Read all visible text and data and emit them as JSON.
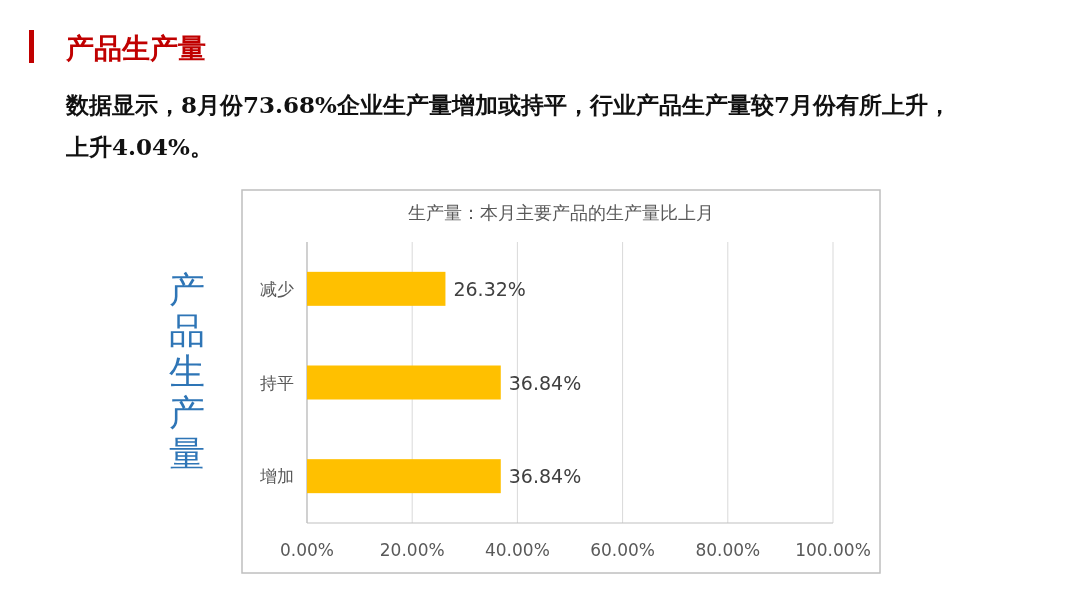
{
  "chart_data": {
    "type": "bar",
    "orientation": "horizontal",
    "title": "产品生产量",
    "subtitle": "数据显示，8月份73.68%企业生产量增加或持平，行业产品生产量较7月份有所上升，上升4.04%。",
    "ylabel": "产品生产量",
    "annotations": [
      "生产量：本月主要产品的生产量比上月"
    ],
    "categories": [
      "减少",
      "持平",
      "增加"
    ],
    "values": [
      26.32,
      36.84,
      36.84
    ],
    "value_labels": [
      "26.32%",
      "36.84%",
      "36.84%"
    ],
    "color": "#ffc000",
    "xlim": [
      0,
      100
    ],
    "xticks": [
      {
        "value": 0,
        "label": "0.00%"
      },
      {
        "value": 20,
        "label": "20.00%"
      },
      {
        "value": 40,
        "label": "40.00%"
      },
      {
        "value": 60,
        "label": "60.00%"
      },
      {
        "value": 80,
        "label": "80.00%"
      },
      {
        "value": 100,
        "label": "100.00%"
      }
    ],
    "grid": "x"
  }
}
